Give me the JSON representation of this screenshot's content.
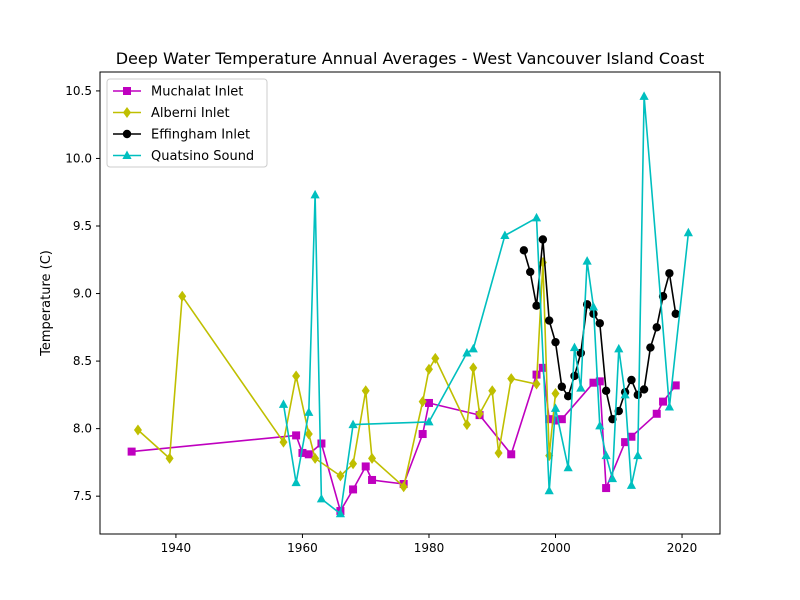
{
  "chart_data": {
    "type": "line",
    "title": "Deep Water Temperature Annual Averages - West Vancouver Island Coast",
    "xlabel": "",
    "ylabel": "Temperature (C)",
    "xlim": [
      1928,
      2026
    ],
    "ylim": [
      7.22,
      10.64
    ],
    "xticks": [
      1940,
      1960,
      1980,
      2000,
      2020
    ],
    "yticks": [
      7.5,
      8.0,
      8.5,
      9.0,
      9.5,
      10.0,
      10.5
    ],
    "grid": false,
    "legend_position": "upper-left",
    "series": [
      {
        "name": "Muchalat Inlet",
        "color": "#bf00bf",
        "marker": "square",
        "points": [
          [
            1933,
            7.83
          ],
          [
            1959,
            7.95
          ],
          [
            1960,
            7.82
          ],
          [
            1961,
            7.81
          ],
          [
            1963,
            7.89
          ],
          [
            1966,
            7.39
          ],
          [
            1968,
            7.55
          ],
          [
            1970,
            7.72
          ],
          [
            1971,
            7.62
          ],
          [
            1976,
            7.59
          ],
          [
            1979,
            7.96
          ],
          [
            1980,
            8.19
          ],
          [
            1988,
            8.1
          ],
          [
            1993,
            7.81
          ],
          [
            1997,
            8.4
          ],
          [
            1998,
            8.45
          ],
          [
            1999,
            8.07
          ],
          [
            2000,
            8.06
          ],
          [
            2001,
            8.07
          ],
          [
            2006,
            8.34
          ],
          [
            2007,
            8.35
          ],
          [
            2008,
            7.56
          ],
          [
            2011,
            7.9
          ],
          [
            2012,
            7.94
          ],
          [
            2016,
            8.11
          ],
          [
            2017,
            8.2
          ],
          [
            2019,
            8.32
          ]
        ]
      },
      {
        "name": "Alberni Inlet",
        "color": "#bfbf00",
        "marker": "diamond",
        "points": [
          [
            1934,
            7.99
          ],
          [
            1939,
            7.78
          ],
          [
            1941,
            8.98
          ],
          [
            1957,
            7.9
          ],
          [
            1959,
            8.39
          ],
          [
            1961,
            7.96
          ],
          [
            1962,
            7.78
          ],
          [
            1966,
            7.65
          ],
          [
            1968,
            7.74
          ],
          [
            1970,
            8.28
          ],
          [
            1971,
            7.78
          ],
          [
            1976,
            7.57
          ],
          [
            1979,
            8.2
          ],
          [
            1980,
            8.44
          ],
          [
            1981,
            8.52
          ],
          [
            1986,
            8.03
          ],
          [
            1987,
            8.45
          ],
          [
            1988,
            8.11
          ],
          [
            1990,
            8.28
          ],
          [
            1991,
            7.82
          ],
          [
            1993,
            8.37
          ],
          [
            1997,
            8.33
          ],
          [
            1998,
            9.23
          ],
          [
            1999,
            7.8
          ],
          [
            2000,
            8.26
          ]
        ]
      },
      {
        "name": "Effingham Inlet",
        "color": "#000000",
        "marker": "circle",
        "points": [
          [
            1995,
            9.32
          ],
          [
            1996,
            9.16
          ],
          [
            1997,
            8.91
          ],
          [
            1998,
            9.4
          ],
          [
            1999,
            8.8
          ],
          [
            2000,
            8.64
          ],
          [
            2001,
            8.31
          ],
          [
            2002,
            8.24
          ],
          [
            2003,
            8.39
          ],
          [
            2004,
            8.56
          ],
          [
            2005,
            8.92
          ],
          [
            2006,
            8.85
          ],
          [
            2007,
            8.78
          ],
          [
            2008,
            8.28
          ],
          [
            2009,
            8.07
          ],
          [
            2010,
            8.13
          ],
          [
            2011,
            8.27
          ],
          [
            2012,
            8.36
          ],
          [
            2013,
            8.25
          ],
          [
            2014,
            8.29
          ],
          [
            2015,
            8.6
          ],
          [
            2016,
            8.75
          ],
          [
            2017,
            8.98
          ],
          [
            2018,
            9.15
          ],
          [
            2019,
            8.85
          ]
        ]
      },
      {
        "name": "Quatsino Sound",
        "color": "#00bfbf",
        "marker": "triangle",
        "points": [
          [
            1957,
            8.18
          ],
          [
            1959,
            7.6
          ],
          [
            1961,
            8.12
          ],
          [
            1962,
            9.73
          ],
          [
            1963,
            7.48
          ],
          [
            1966,
            7.37
          ],
          [
            1968,
            8.03
          ],
          [
            1980,
            8.05
          ],
          [
            1986,
            8.56
          ],
          [
            1987,
            8.59
          ],
          [
            1992,
            9.43
          ],
          [
            1997,
            9.56
          ],
          [
            1999,
            7.54
          ],
          [
            2000,
            8.15
          ],
          [
            2002,
            7.71
          ],
          [
            2003,
            8.6
          ],
          [
            2004,
            8.3
          ],
          [
            2005,
            9.24
          ],
          [
            2006,
            8.9
          ],
          [
            2007,
            8.02
          ],
          [
            2008,
            7.8
          ],
          [
            2009,
            7.63
          ],
          [
            2010,
            8.59
          ],
          [
            2011,
            8.25
          ],
          [
            2012,
            7.58
          ],
          [
            2013,
            7.8
          ],
          [
            2014,
            10.46
          ],
          [
            2018,
            8.16
          ],
          [
            2021,
            9.45
          ]
        ]
      }
    ]
  }
}
